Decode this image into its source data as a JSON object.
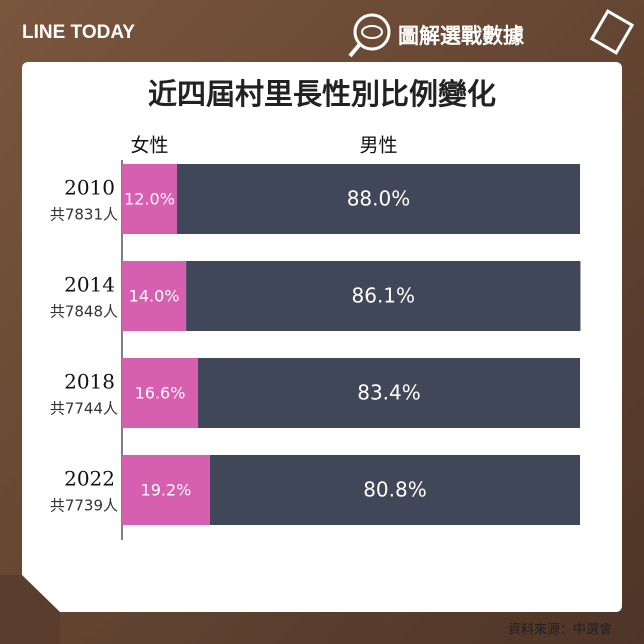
{
  "brand": "LINE TODAY",
  "badge": "圖解選戰數據",
  "source": "資料來源：中選會",
  "chart_data": {
    "type": "stacked-bar-horizontal",
    "title": "近四屆村里長性別比例變化",
    "categories": [
      "2010",
      "2014",
      "2018",
      "2022"
    ],
    "sublabels": [
      "共7831人",
      "共7848人",
      "共7744人",
      "共7739人"
    ],
    "xlim": [
      0,
      100
    ],
    "series": [
      {
        "name": "女性",
        "color": "#d65fb0",
        "values": [
          12.0,
          14.0,
          16.6,
          19.2
        ],
        "value_labels": [
          "12.0%",
          "14.0%",
          "16.6%",
          "19.2%"
        ]
      },
      {
        "name": "男性",
        "color": "#3f4758",
        "values": [
          88.0,
          86.1,
          83.4,
          80.8
        ],
        "value_labels": [
          "88.0%",
          "86.1%",
          "83.4%",
          "80.8%"
        ]
      }
    ]
  }
}
